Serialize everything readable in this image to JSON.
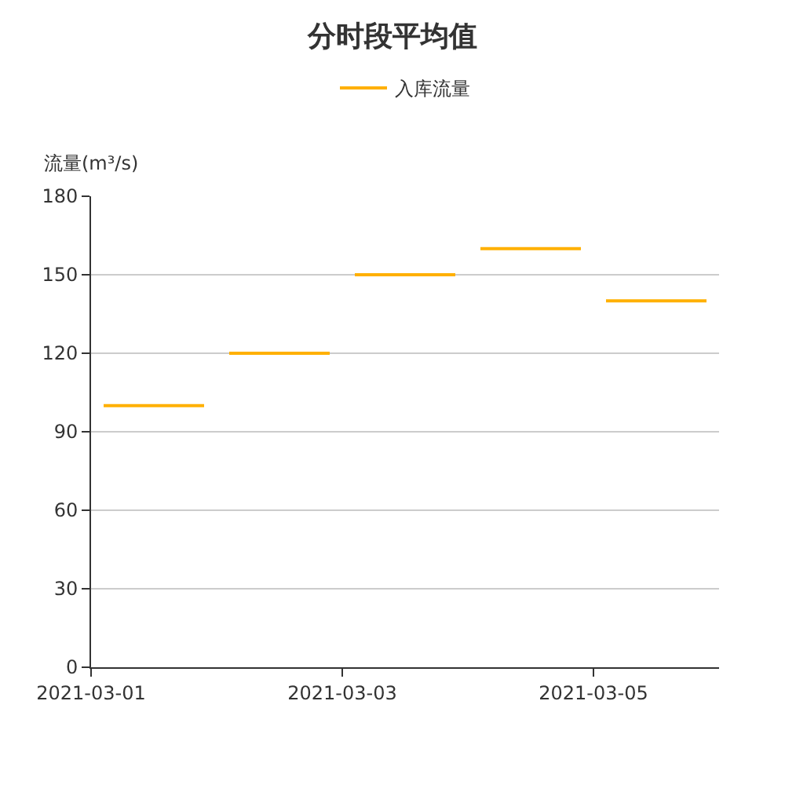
{
  "chart_data": {
    "type": "line",
    "title": "分时段平均值",
    "ylabel": "流量(m³/s)",
    "x": [
      "2021-03-01T02:24",
      "2021-03-01T21:36",
      "2021-03-02T00:00",
      "2021-03-02T02:24",
      "2021-03-02T21:36",
      "2021-03-03T00:00",
      "2021-03-03T02:24",
      "2021-03-03T21:36",
      "2021-03-04T00:00",
      "2021-03-04T02:24",
      "2021-03-04T21:36",
      "2021-03-05T00:00",
      "2021-03-05T02:24",
      "2021-03-05T21:36"
    ],
    "series": [
      {
        "name": "入库流量",
        "color": "#ffb000",
        "values": [
          100,
          100,
          null,
          120,
          120,
          null,
          150,
          150,
          null,
          160,
          160,
          null,
          140,
          140
        ]
      }
    ],
    "xlim": [
      "2021-03-01",
      "2021-03-06"
    ],
    "xticks": [
      {
        "value": "2021-03-01",
        "label": "2021-03-01"
      },
      {
        "value": "2021-03-03",
        "label": "2021-03-03"
      },
      {
        "value": "2021-03-05",
        "label": "2021-03-05"
      }
    ],
    "ylim": [
      0,
      180
    ],
    "yticks": [
      0,
      30,
      60,
      90,
      120,
      150,
      180
    ],
    "grid": "y",
    "legend": "top",
    "marker": "none",
    "line_style": "solid"
  }
}
